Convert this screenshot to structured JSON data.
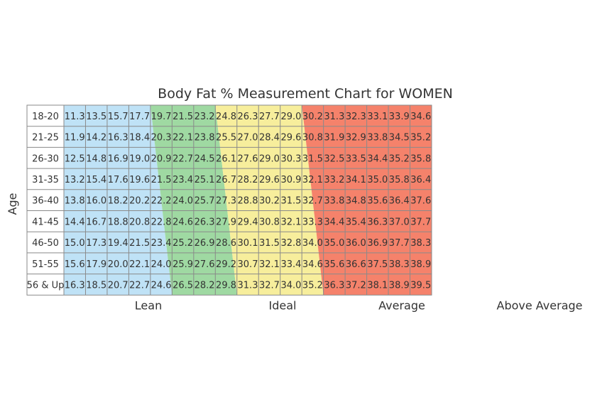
{
  "chart_data": {
    "type": "table",
    "title": "Body Fat % Measurement Chart for  WOMEN",
    "ylabel": "Age",
    "age_groups": [
      "18-20",
      "21-25",
      "26-30",
      "31-35",
      "36-40",
      "41-45",
      "46-50",
      "51-55",
      "56 & Up"
    ],
    "rows": [
      [
        11.3,
        13.5,
        15.7,
        17.7,
        19.7,
        21.5,
        23.2,
        24.8,
        26.3,
        27.7,
        29.0,
        30.2,
        31.3,
        32.3,
        33.1,
        33.9,
        34.6
      ],
      [
        11.9,
        14.2,
        16.3,
        18.4,
        20.3,
        22.1,
        23.8,
        25.5,
        27.0,
        28.4,
        29.6,
        30.8,
        31.9,
        32.9,
        33.8,
        34.5,
        35.2
      ],
      [
        12.5,
        14.8,
        16.9,
        19.0,
        20.9,
        22.7,
        24.5,
        26.1,
        27.6,
        29.0,
        30.3,
        31.5,
        32.5,
        33.5,
        34.4,
        35.2,
        35.8
      ],
      [
        13.2,
        15.4,
        17.6,
        19.6,
        21.5,
        23.4,
        25.1,
        26.7,
        28.2,
        29.6,
        30.9,
        32.1,
        33.2,
        34.1,
        35.0,
        35.8,
        36.4
      ],
      [
        13.8,
        16.0,
        18.2,
        20.2,
        22.2,
        24.0,
        25.7,
        27.3,
        28.8,
        30.2,
        31.5,
        32.7,
        33.8,
        34.8,
        35.6,
        36.4,
        37.6
      ],
      [
        14.4,
        16.7,
        18.8,
        20.8,
        22.8,
        24.6,
        26.3,
        27.9,
        29.4,
        30.8,
        32.1,
        33.3,
        34.4,
        35.4,
        36.3,
        37.0,
        37.7
      ],
      [
        15.0,
        17.3,
        19.4,
        21.5,
        23.4,
        25.2,
        26.9,
        28.6,
        30.1,
        31.5,
        32.8,
        34.0,
        35.0,
        36.0,
        36.9,
        37.7,
        38.3
      ],
      [
        15.6,
        17.9,
        20.0,
        22.1,
        24.0,
        25.9,
        27.6,
        29.2,
        30.7,
        32.1,
        33.4,
        34.6,
        35.6,
        36.6,
        37.5,
        38.3,
        38.9
      ],
      [
        16.3,
        18.5,
        20.7,
        22.7,
        24.6,
        26.5,
        28.2,
        29.8,
        31.3,
        32.7,
        34.0,
        35.2,
        36.3,
        37.2,
        38.1,
        38.9,
        39.5
      ]
    ],
    "bands": [
      {
        "name": "Lean",
        "color": "#bfe2f6"
      },
      {
        "name": "Ideal",
        "color": "#9fd9a2"
      },
      {
        "name": "Average",
        "color": "#f7ee9c"
      },
      {
        "name": "Above Average",
        "color": "#f5826b"
      }
    ],
    "band_boundaries": [
      {
        "top_col": 4.0,
        "bottom_col": 5.0
      },
      {
        "top_col": 7.0,
        "bottom_col": 8.0
      },
      {
        "top_col": 11.0,
        "bottom_col": 12.0
      }
    ]
  }
}
